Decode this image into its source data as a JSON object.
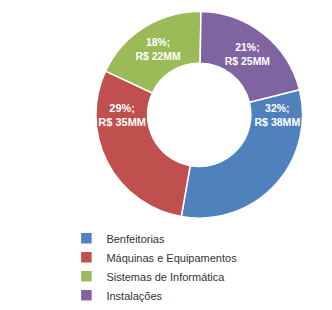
{
  "chart_data": {
    "type": "pie",
    "categories": [
      "Benfeitorias",
      "Máquinas e Equipamentos",
      "Sistemas de Informática",
      "Instalações"
    ],
    "values": [
      38,
      35,
      22,
      25
    ],
    "value_labels": [
      "32%; R$ 38MM",
      "29%; R$ 35MM",
      "18%; R$ 22MM",
      "21%; R$ 25MM"
    ],
    "colors": [
      "#4f81bd",
      "#c0504d",
      "#9bbb59",
      "#8064a2"
    ],
    "data_labels": true,
    "legend": "bottom left"
  }
}
